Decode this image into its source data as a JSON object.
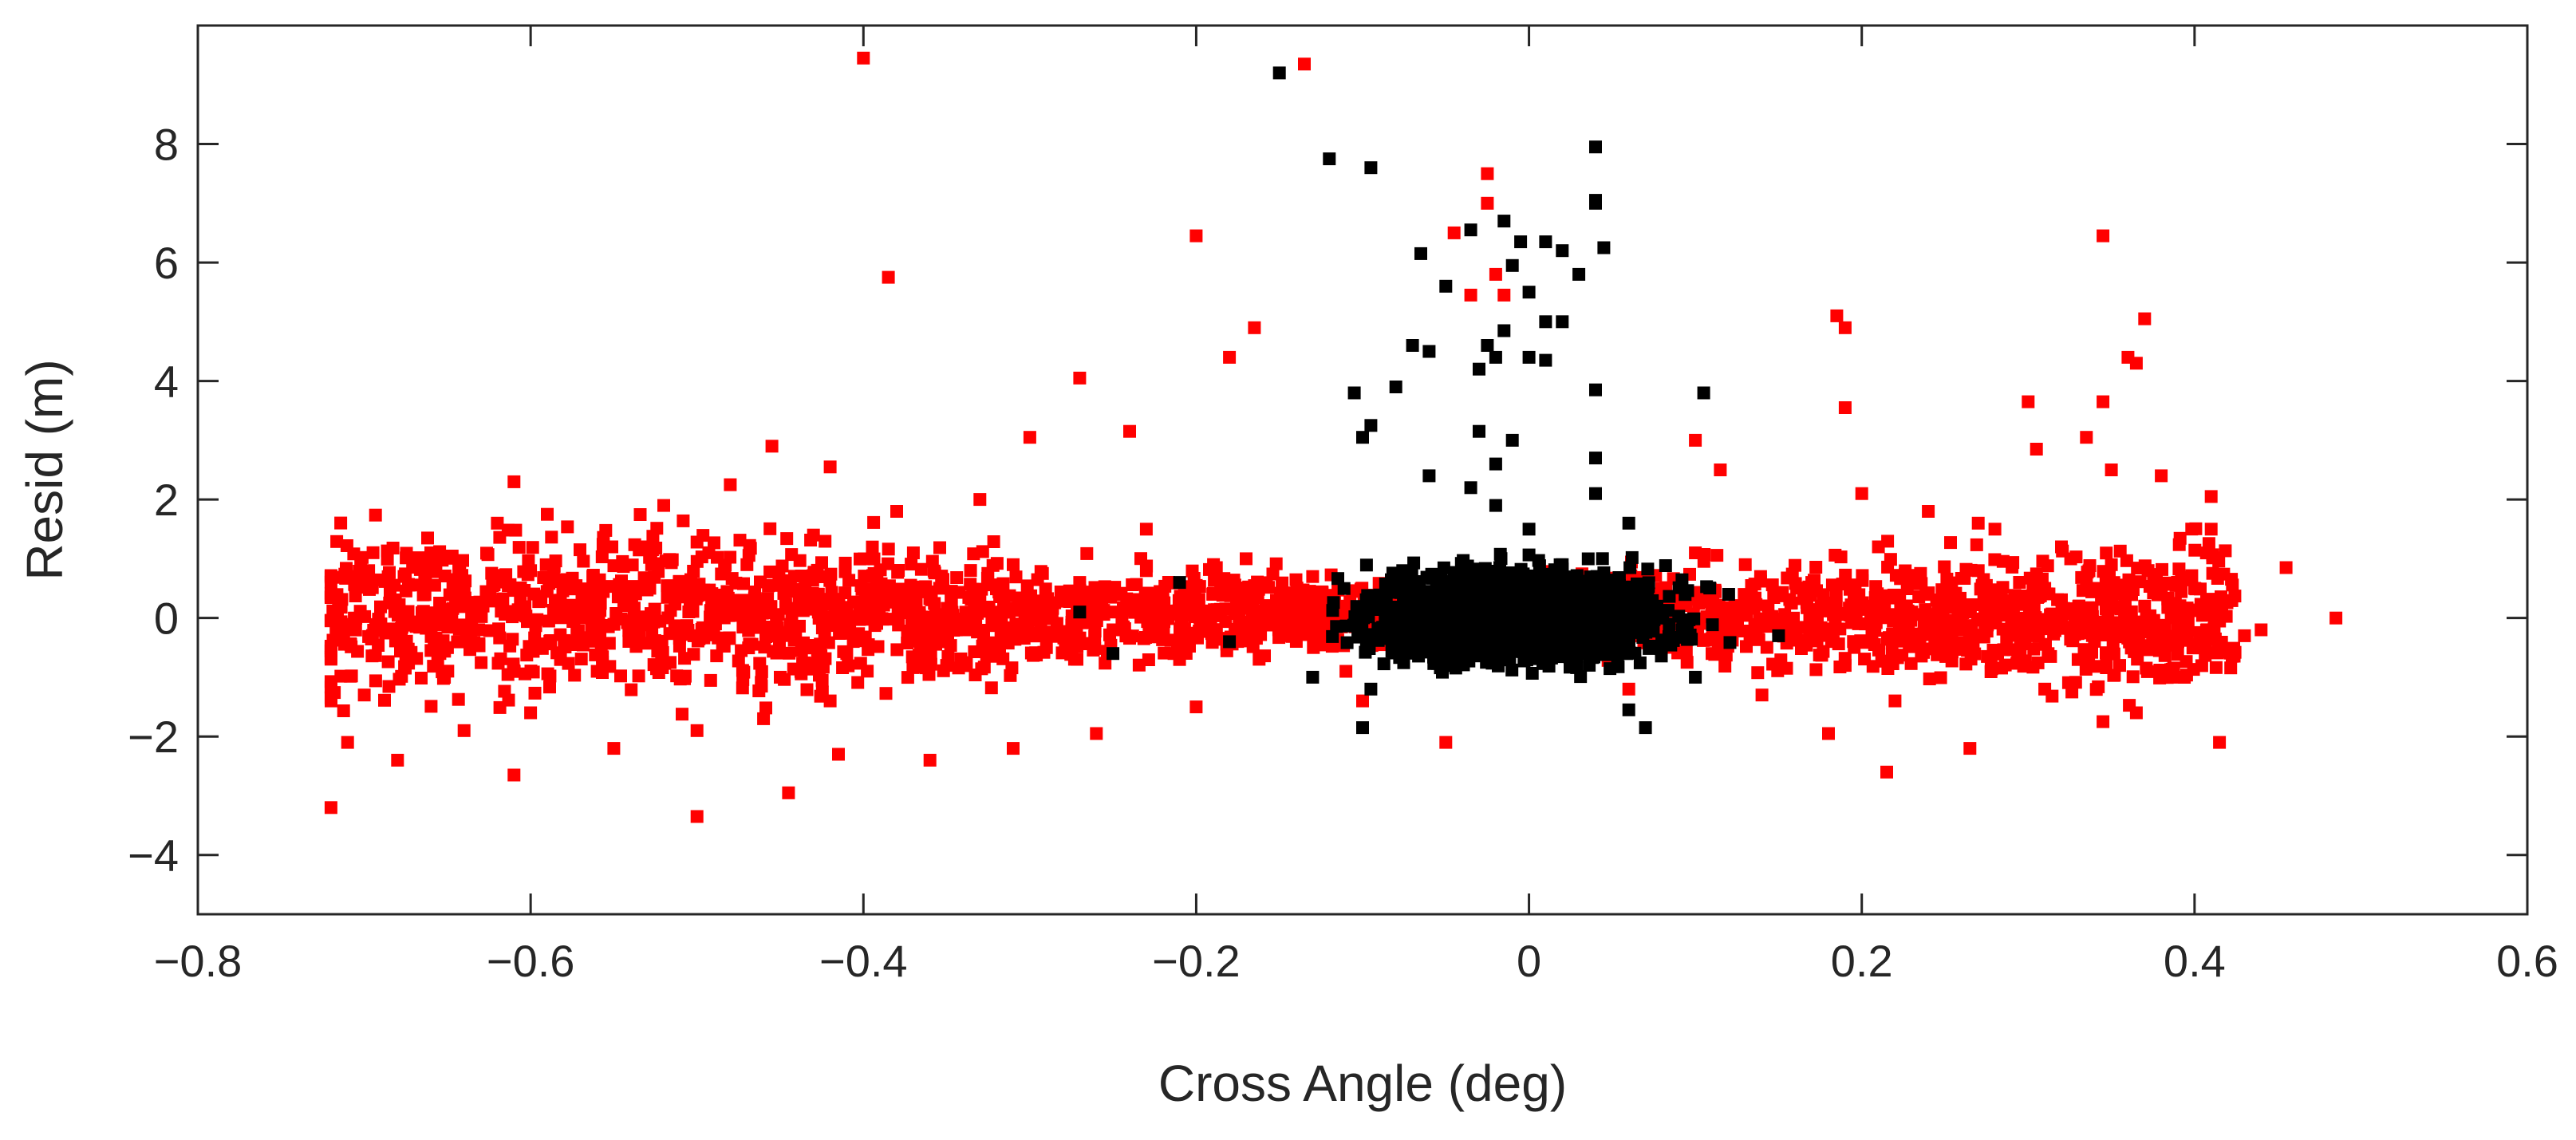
{
  "chart_data": {
    "type": "scatter",
    "title": "",
    "xlabel": "Cross Angle (deg)",
    "ylabel": "Resid (m)",
    "xlim": [
      -0.8,
      0.6
    ],
    "ylim": [
      -5,
      10
    ],
    "xticks": [
      -0.8,
      -0.6,
      -0.4,
      -0.2,
      0,
      0.2,
      0.4,
      0.6
    ],
    "yticks": [
      -4,
      -2,
      0,
      2,
      4,
      6,
      8
    ],
    "xtick_labels": [
      "−0.8",
      "−0.6",
      "−0.4",
      "−0.2",
      "0",
      "0.2",
      "0.4",
      "0.6"
    ],
    "ytick_labels": [
      "−4",
      "−2",
      "0",
      "2",
      "4",
      "6",
      "8"
    ],
    "grid": false,
    "legend": "none",
    "series": [
      {
        "color": "#ff0000",
        "marker": "square",
        "points": [
          [
            -0.4,
            9.45
          ],
          [
            -0.135,
            9.35
          ],
          [
            -0.385,
            5.75
          ],
          [
            -0.2,
            6.45
          ],
          [
            -0.025,
            7.5
          ],
          [
            -0.025,
            7.0
          ],
          [
            -0.165,
            4.9
          ],
          [
            -0.18,
            4.4
          ],
          [
            -0.27,
            4.05
          ],
          [
            -0.24,
            3.15
          ],
          [
            -0.3,
            3.05
          ],
          [
            -0.455,
            2.9
          ],
          [
            -0.42,
            2.55
          ],
          [
            -0.61,
            2.3
          ],
          [
            -0.045,
            6.5
          ],
          [
            -0.02,
            5.8
          ],
          [
            -0.015,
            5.45
          ],
          [
            -0.035,
            5.45
          ],
          [
            0.345,
            6.45
          ],
          [
            0.37,
            5.05
          ],
          [
            0.185,
            5.1
          ],
          [
            0.19,
            4.9
          ],
          [
            0.36,
            4.4
          ],
          [
            0.365,
            4.3
          ],
          [
            0.3,
            3.65
          ],
          [
            0.345,
            3.65
          ],
          [
            0.19,
            3.55
          ],
          [
            0.1,
            3.0
          ],
          [
            0.335,
            3.05
          ],
          [
            0.305,
            2.85
          ],
          [
            0.115,
            2.5
          ],
          [
            0.35,
            2.5
          ],
          [
            0.38,
            2.4
          ],
          [
            0.41,
            2.05
          ],
          [
            0.455,
            0.85
          ],
          [
            0.485,
            0.0
          ],
          [
            0.43,
            -0.3
          ],
          [
            0.415,
            -2.1
          ],
          [
            0.265,
            -2.2
          ],
          [
            0.215,
            -2.6
          ],
          [
            0.18,
            -1.95
          ],
          [
            0.365,
            -1.6
          ],
          [
            0.345,
            -1.75
          ],
          [
            -0.5,
            -3.35
          ],
          [
            -0.72,
            -3.2
          ],
          [
            -0.61,
            -2.65
          ],
          [
            -0.55,
            -2.2
          ],
          [
            -0.46,
            -1.7
          ],
          [
            -0.445,
            -2.95
          ],
          [
            -0.415,
            -2.3
          ],
          [
            -0.36,
            -2.4
          ],
          [
            -0.05,
            -2.1
          ],
          [
            -0.26,
            -1.95
          ],
          [
            -0.31,
            -2.2
          ],
          [
            -0.68,
            -2.4
          ],
          [
            -0.71,
            -2.1
          ],
          [
            -0.64,
            -1.9
          ],
          [
            -0.5,
            -1.9
          ],
          [
            0.39,
            -1.0
          ],
          [
            0.355,
            -0.8
          ],
          [
            -0.715,
            0.3
          ],
          [
            -0.66,
            1.1
          ],
          [
            -0.59,
            1.75
          ],
          [
            -0.52,
            1.9
          ],
          [
            -0.48,
            2.25
          ],
          [
            -0.38,
            1.8
          ],
          [
            -0.33,
            2.0
          ],
          [
            -0.23,
            1.5
          ],
          [
            0.2,
            2.1
          ],
          [
            0.24,
            1.8
          ],
          [
            0.28,
            1.5
          ],
          [
            0.32,
            1.2
          ],
          [
            0.4,
            0.5
          ],
          [
            0.44,
            -0.2
          ],
          [
            0.31,
            -1.2
          ],
          [
            0.14,
            -1.3
          ],
          [
            0.06,
            -1.2
          ],
          [
            -0.1,
            -1.4
          ],
          [
            -0.2,
            -1.5
          ],
          [
            -0.42,
            -1.4
          ],
          [
            -0.7,
            -1.3
          ],
          [
            -0.69,
            -0.1
          ],
          [
            -0.65,
            -0.5
          ],
          [
            -0.6,
            0.8
          ],
          [
            -0.56,
            -0.9
          ],
          [
            -0.53,
            1.2
          ],
          [
            -0.5,
            -0.3
          ],
          [
            -0.47,
            0.9
          ],
          [
            -0.45,
            -1.0
          ],
          [
            -0.43,
            1.4
          ],
          [
            -0.41,
            -0.6
          ],
          [
            -0.39,
            0.5
          ],
          [
            -0.37,
            1.1
          ],
          [
            -0.35,
            -0.8
          ],
          [
            -0.33,
            0.3
          ],
          [
            -0.31,
            0.9
          ],
          [
            -0.29,
            -0.5
          ],
          [
            -0.27,
            0.6
          ],
          [
            -0.25,
            -0.2
          ],
          [
            -0.23,
            0.8
          ],
          [
            -0.21,
            -0.7
          ],
          [
            -0.19,
            0.4
          ],
          [
            -0.17,
            1.0
          ],
          [
            -0.15,
            -0.3
          ],
          [
            -0.13,
            0.7
          ],
          [
            -0.11,
            -0.9
          ],
          [
            -0.09,
            0.2
          ],
          [
            0.09,
            0.3
          ],
          [
            0.11,
            -0.6
          ],
          [
            0.13,
            0.9
          ],
          [
            0.15,
            -0.2
          ],
          [
            0.17,
            0.6
          ],
          [
            0.19,
            -0.8
          ],
          [
            0.21,
            1.2
          ],
          [
            0.23,
            0.1
          ],
          [
            0.25,
            -0.5
          ],
          [
            0.27,
            0.8
          ],
          [
            0.29,
            -0.1
          ],
          [
            0.31,
            0.5
          ],
          [
            0.33,
            -0.7
          ],
          [
            0.35,
            0.9
          ],
          [
            0.37,
            0.2
          ],
          [
            0.39,
            -0.4
          ],
          [
            0.41,
            1.5
          ],
          [
            0.27,
            1.6
          ],
          [
            0.22,
            -1.4
          ],
          [
            0.1,
            1.1
          ],
          [
            -0.6,
            -1.6
          ],
          [
            -0.62,
            1.6
          ],
          [
            -0.58,
            0.2
          ]
        ],
        "cloud": {
          "x_center": -0.15,
          "x_spread": 0.5,
          "y_center": 0.05,
          "y_spread": 0.85,
          "count": 2600,
          "fan_peaks": [
            -0.47,
            0.3
          ]
        }
      },
      {
        "color": "#000000",
        "marker": "square",
        "points": [
          [
            -0.15,
            9.2
          ],
          [
            0.04,
            7.95
          ],
          [
            -0.12,
            7.75
          ],
          [
            -0.095,
            7.6
          ],
          [
            0.04,
            7.05
          ],
          [
            0.04,
            7.0
          ],
          [
            -0.015,
            6.7
          ],
          [
            -0.035,
            6.55
          ],
          [
            -0.005,
            6.35
          ],
          [
            0.01,
            6.35
          ],
          [
            0.02,
            6.2
          ],
          [
            0.045,
            6.25
          ],
          [
            -0.065,
            6.15
          ],
          [
            -0.01,
            5.95
          ],
          [
            0.03,
            5.8
          ],
          [
            -0.05,
            5.6
          ],
          [
            0.0,
            5.5
          ],
          [
            0.01,
            5.0
          ],
          [
            0.02,
            5.0
          ],
          [
            -0.015,
            4.85
          ],
          [
            -0.07,
            4.6
          ],
          [
            -0.06,
            4.5
          ],
          [
            -0.025,
            4.6
          ],
          [
            -0.02,
            4.4
          ],
          [
            0.0,
            4.4
          ],
          [
            0.01,
            4.35
          ],
          [
            -0.03,
            4.2
          ],
          [
            -0.08,
            3.9
          ],
          [
            -0.105,
            3.8
          ],
          [
            0.04,
            3.85
          ],
          [
            0.105,
            3.8
          ],
          [
            -0.095,
            3.25
          ],
          [
            -0.1,
            3.05
          ],
          [
            -0.03,
            3.15
          ],
          [
            -0.01,
            3.0
          ],
          [
            0.04,
            2.7
          ],
          [
            -0.02,
            2.6
          ],
          [
            -0.06,
            2.4
          ],
          [
            -0.035,
            2.2
          ],
          [
            0.04,
            2.1
          ],
          [
            -0.02,
            1.9
          ],
          [
            0.06,
            1.6
          ],
          [
            0.0,
            1.5
          ],
          [
            0.1,
            -1.0
          ],
          [
            0.07,
            -1.85
          ],
          [
            0.06,
            -1.55
          ],
          [
            -0.1,
            -1.85
          ],
          [
            -0.095,
            -1.2
          ],
          [
            -0.13,
            -1.0
          ],
          [
            -0.27,
            0.1
          ],
          [
            -0.25,
            -0.6
          ],
          [
            -0.21,
            0.6
          ],
          [
            -0.18,
            -0.4
          ],
          [
            0.15,
            -0.3
          ],
          [
            0.12,
            0.4
          ]
        ],
        "cloud": {
          "x_center": -0.005,
          "x_spread": 0.07,
          "y_center": 0.05,
          "y_spread": 0.5,
          "count": 1700
        }
      }
    ]
  }
}
